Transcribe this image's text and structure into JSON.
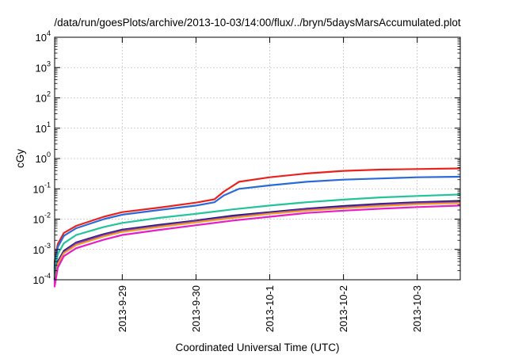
{
  "chart_data": {
    "type": "line",
    "title": "/data/run/goesPlots/archive/2013-10-03/14:00/flux/../bryn/5daysMarsAccumulated.plot",
    "xlabel": "Coordinated Universal Time (UTC)",
    "ylabel": "cGy",
    "y_scale": "log",
    "ylim": [
      0.0001,
      10000
    ],
    "xlim": [
      "2013-09-28 02:00",
      "2013-10-03 14:00"
    ],
    "x_ticks": [
      "2013-9-29",
      "2013-9-30",
      "2013-10-1",
      "2013-10-2",
      "2013-10-3"
    ],
    "y_ticks": [
      {
        "base": "10",
        "exp": "-4"
      },
      {
        "base": "10",
        "exp": "-3"
      },
      {
        "base": "10",
        "exp": "-2"
      },
      {
        "base": "10",
        "exp": "-1"
      },
      {
        "base": "10",
        "exp": "0"
      },
      {
        "base": "10",
        "exp": "1"
      },
      {
        "base": "10",
        "exp": "2"
      },
      {
        "base": "10",
        "exp": "3"
      },
      {
        "base": "10",
        "exp": "4"
      }
    ],
    "grid": true,
    "series": [
      {
        "color": "#e8231e",
        "x": [
          "2013-09-28 02:00",
          "2013-09-28 03:00",
          "2013-09-28 05:00",
          "2013-09-28 09:00",
          "2013-09-28 18:00",
          "2013-09-29 00:00",
          "2013-09-29 12:00",
          "2013-09-30 00:00",
          "2013-09-30 06:00",
          "2013-09-30 09:00",
          "2013-09-30 14:00",
          "2013-10-01 00:00",
          "2013-10-01 12:00",
          "2013-10-02 00:00",
          "2013-10-02 12:00",
          "2013-10-03 00:00",
          "2013-10-03 14:00"
        ],
        "y": [
          0.0004,
          0.0015,
          0.0035,
          0.006,
          0.012,
          0.017,
          0.024,
          0.035,
          0.045,
          0.08,
          0.17,
          0.24,
          0.32,
          0.39,
          0.43,
          0.45,
          0.47
        ]
      },
      {
        "color": "#2a6ad8",
        "x": [
          "2013-09-28 02:00",
          "2013-09-28 03:00",
          "2013-09-28 05:00",
          "2013-09-28 09:00",
          "2013-09-28 18:00",
          "2013-09-29 00:00",
          "2013-09-29 12:00",
          "2013-09-30 00:00",
          "2013-09-30 06:00",
          "2013-09-30 09:00",
          "2013-09-30 14:00",
          "2013-10-01 00:00",
          "2013-10-01 12:00",
          "2013-10-02 00:00",
          "2013-10-02 12:00",
          "2013-10-03 00:00",
          "2013-10-03 14:00"
        ],
        "y": [
          0.0003,
          0.0012,
          0.0028,
          0.005,
          0.01,
          0.014,
          0.02,
          0.028,
          0.036,
          0.06,
          0.1,
          0.13,
          0.17,
          0.2,
          0.22,
          0.24,
          0.25
        ]
      },
      {
        "color": "#22c49a",
        "x": [
          "2013-09-28 02:00",
          "2013-09-28 03:00",
          "2013-09-28 05:00",
          "2013-09-28 09:00",
          "2013-09-28 18:00",
          "2013-09-29 00:00",
          "2013-09-29 12:00",
          "2013-09-30 00:00",
          "2013-09-30 12:00",
          "2013-10-01 00:00",
          "2013-10-01 12:00",
          "2013-10-02 00:00",
          "2013-10-02 12:00",
          "2013-10-03 00:00",
          "2013-10-03 14:00"
        ],
        "y": [
          0.0002,
          0.0007,
          0.0016,
          0.003,
          0.0055,
          0.0075,
          0.011,
          0.015,
          0.021,
          0.028,
          0.036,
          0.044,
          0.052,
          0.058,
          0.065
        ]
      },
      {
        "color": "#1a1a5e",
        "x": [
          "2013-09-28 02:00",
          "2013-09-28 03:00",
          "2013-09-28 05:00",
          "2013-09-28 09:00",
          "2013-09-28 18:00",
          "2013-09-29 00:00",
          "2013-09-29 12:00",
          "2013-09-30 00:00",
          "2013-09-30 12:00",
          "2013-10-01 00:00",
          "2013-10-01 12:00",
          "2013-10-02 00:00",
          "2013-10-02 12:00",
          "2013-10-03 00:00",
          "2013-10-03 14:00"
        ],
        "y": [
          0.0001,
          0.0004,
          0.0009,
          0.0017,
          0.0032,
          0.0045,
          0.0065,
          0.009,
          0.013,
          0.017,
          0.022,
          0.027,
          0.032,
          0.036,
          0.04
        ]
      },
      {
        "color": "#7e2fc4",
        "x": [
          "2013-09-28 02:00",
          "2013-09-28 03:00",
          "2013-09-28 05:00",
          "2013-09-28 09:00",
          "2013-09-28 18:00",
          "2013-09-29 00:00",
          "2013-09-29 12:00",
          "2013-09-30 00:00",
          "2013-09-30 12:00",
          "2013-10-01 00:00",
          "2013-10-01 12:00",
          "2013-10-02 00:00",
          "2013-10-02 12:00",
          "2013-10-03 00:00",
          "2013-10-03 14:00"
        ],
        "y": [
          9e-05,
          0.00036,
          0.00082,
          0.0016,
          0.003,
          0.0042,
          0.006,
          0.0085,
          0.012,
          0.016,
          0.021,
          0.025,
          0.03,
          0.034,
          0.037
        ]
      },
      {
        "color": "#f0a020",
        "x": [
          "2013-09-28 02:00",
          "2013-09-28 03:00",
          "2013-09-28 05:00",
          "2013-09-28 09:00",
          "2013-09-28 18:00",
          "2013-09-29 00:00",
          "2013-09-29 12:00",
          "2013-09-30 00:00",
          "2013-09-30 12:00",
          "2013-10-01 00:00",
          "2013-10-01 12:00",
          "2013-10-02 00:00",
          "2013-10-02 12:00",
          "2013-10-03 00:00",
          "2013-10-03 14:00"
        ],
        "y": [
          8e-05,
          0.00032,
          0.00075,
          0.0014,
          0.0027,
          0.0038,
          0.0055,
          0.0078,
          0.011,
          0.015,
          0.019,
          0.023,
          0.027,
          0.031,
          0.034
        ]
      },
      {
        "color": "#e61ec8",
        "x": [
          "2013-09-28 02:00",
          "2013-09-28 03:00",
          "2013-09-28 05:00",
          "2013-09-28 09:00",
          "2013-09-28 18:00",
          "2013-09-29 00:00",
          "2013-09-29 12:00",
          "2013-09-30 00:00",
          "2013-09-30 12:00",
          "2013-10-01 00:00",
          "2013-10-01 12:00",
          "2013-10-02 00:00",
          "2013-10-02 12:00",
          "2013-10-03 00:00",
          "2013-10-03 14:00"
        ],
        "y": [
          6e-05,
          0.00025,
          0.0006,
          0.0011,
          0.0021,
          0.003,
          0.0044,
          0.0063,
          0.009,
          0.012,
          0.016,
          0.019,
          0.022,
          0.025,
          0.028
        ]
      }
    ]
  }
}
